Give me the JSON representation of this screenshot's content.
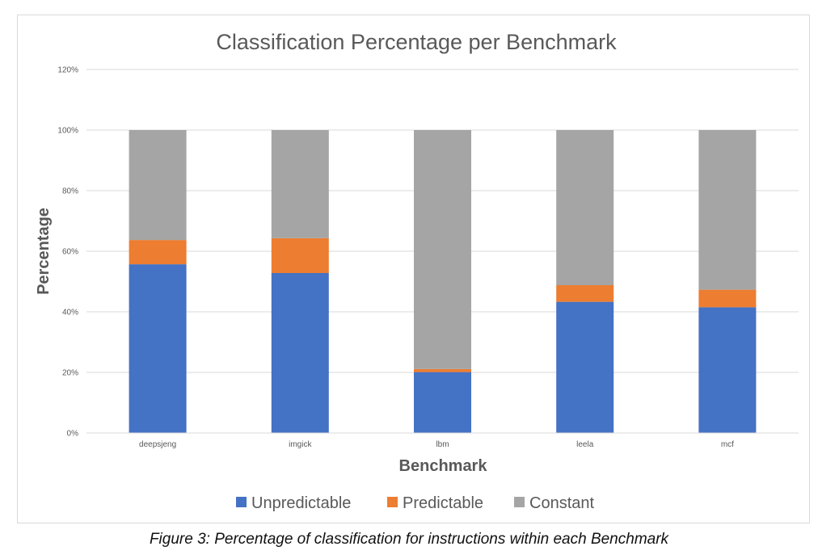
{
  "chart_data": {
    "type": "bar",
    "stacked": true,
    "title": "Classification Percentage per Benchmark",
    "xlabel": "Benchmark",
    "ylabel": "Percentage",
    "categories": [
      "deepsjeng",
      "imgick",
      "lbm",
      "leela",
      "mcf"
    ],
    "series": [
      {
        "name": "Unpredictable",
        "color": "#4472C4",
        "values": [
          55.7,
          52.8,
          20.1,
          43.3,
          41.5
        ]
      },
      {
        "name": "Predictable",
        "color": "#ED7D31",
        "values": [
          8.0,
          11.5,
          1.0,
          5.5,
          5.8
        ]
      },
      {
        "name": "Constant",
        "color": "#A5A5A5",
        "values": [
          36.3,
          35.7,
          78.9,
          51.2,
          52.7
        ]
      }
    ],
    "ylim": [
      0,
      120
    ],
    "yticks": [
      "0%",
      "20%",
      "40%",
      "60%",
      "80%",
      "100%",
      "120%"
    ],
    "ytick_values": [
      0,
      20,
      40,
      60,
      80,
      100,
      120
    ],
    "grid": true,
    "legend": "bottom"
  },
  "caption": "Figure 3: Percentage of classification for instructions within each Benchmark"
}
